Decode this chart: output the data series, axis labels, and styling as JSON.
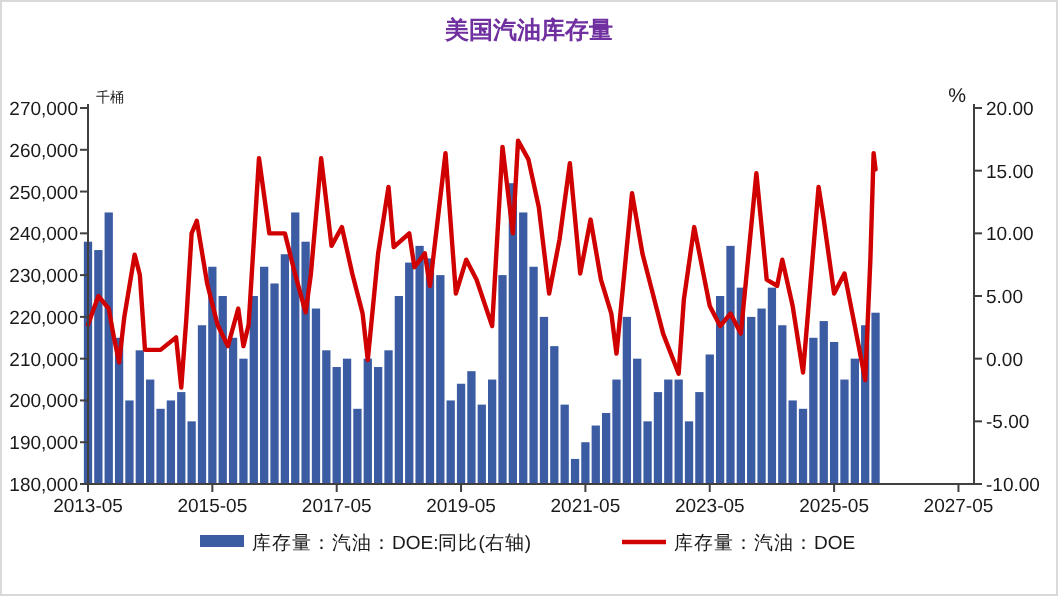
{
  "chart_data": {
    "type": "bar",
    "title": "美国汽油库存量",
    "ylabel": "千桶",
    "y2label": "%",
    "xlim": [
      "2013-05",
      "2027-08"
    ],
    "xticks": [
      "2013-05",
      "2015-05",
      "2017-05",
      "2019-05",
      "2021-05",
      "2023-05",
      "2025-05",
      "2027-05"
    ],
    "ylim": [
      180000,
      270000
    ],
    "yticks": [
      {
        "value": 180000,
        "label": "180,000"
      },
      {
        "value": 190000,
        "label": "190,000"
      },
      {
        "value": 200000,
        "label": "200,000"
      },
      {
        "value": 210000,
        "label": "210,000"
      },
      {
        "value": 220000,
        "label": "220,000"
      },
      {
        "value": 230000,
        "label": "230,000"
      },
      {
        "value": 240000,
        "label": "240,000"
      },
      {
        "value": 250000,
        "label": "250,000"
      },
      {
        "value": 260000,
        "label": "260,000"
      },
      {
        "value": 270000,
        "label": "270,000"
      }
    ],
    "y2lim": [
      -10,
      20
    ],
    "y2ticks": [
      {
        "value": -10,
        "label": "-10.00"
      },
      {
        "value": -5,
        "label": "-5.00"
      },
      {
        "value": 0,
        "label": "0.00"
      },
      {
        "value": 5,
        "label": "5.00"
      },
      {
        "value": 10,
        "label": "10.00"
      },
      {
        "value": 15,
        "label": "15.00"
      },
      {
        "value": 20,
        "label": "20.00"
      }
    ],
    "legend": "bottom",
    "series": [
      {
        "name": "库存量：汽油：DOE:同比(右轴)",
        "color": "#3b5ca3",
        "x": [
          "2013-05",
          "2013-07",
          "2013-09",
          "2013-11",
          "2014-01",
          "2014-03",
          "2014-05",
          "2014-07",
          "2014-09",
          "2014-11",
          "2015-01",
          "2015-03",
          "2015-05",
          "2015-07",
          "2015-09",
          "2015-11",
          "2016-01",
          "2016-03",
          "2016-05",
          "2016-07",
          "2016-09",
          "2016-11",
          "2017-01",
          "2017-03",
          "2017-05",
          "2017-07",
          "2017-09",
          "2017-11",
          "2018-01",
          "2018-03",
          "2018-05",
          "2018-07",
          "2018-09",
          "2018-11",
          "2019-01",
          "2019-03",
          "2019-05",
          "2019-07",
          "2019-09",
          "2019-11",
          "2020-01",
          "2020-03",
          "2020-05",
          "2020-07",
          "2020-09",
          "2020-11",
          "2021-01",
          "2021-03",
          "2021-05",
          "2021-07",
          "2021-09",
          "2021-11",
          "2022-01",
          "2022-03",
          "2022-05",
          "2022-07",
          "2022-09",
          "2022-11",
          "2023-01",
          "2023-03",
          "2023-05",
          "2023-07",
          "2023-09",
          "2023-11",
          "2024-01",
          "2024-03",
          "2024-05",
          "2024-07",
          "2024-09",
          "2024-11",
          "2025-01",
          "2025-03",
          "2025-05",
          "2025-07",
          "2025-09",
          "2025-11",
          "2026-01"
        ],
        "values": [
          238000,
          236000,
          245000,
          215000,
          200000,
          212000,
          205000,
          198000,
          200000,
          202000,
          195000,
          218000,
          232000,
          225000,
          215000,
          210000,
          225000,
          232000,
          228000,
          235000,
          245000,
          238000,
          222000,
          212000,
          208000,
          210000,
          198000,
          210000,
          208000,
          212000,
          225000,
          233000,
          237000,
          234000,
          230000,
          200000,
          204000,
          207000,
          199000,
          205000,
          230000,
          252000,
          245000,
          232000,
          220000,
          213000,
          199000,
          186000,
          190000,
          194000,
          197000,
          205000,
          220000,
          210000,
          195000,
          202000,
          205000,
          205000,
          195000,
          202000,
          211000,
          225000,
          237000,
          227000,
          220000,
          222000,
          227000,
          218000,
          200000,
          198000,
          215000,
          219000,
          214000,
          205000,
          210000,
          218000,
          221000
        ]
      },
      {
        "name": "库存量：汽油：DOE",
        "type": "line",
        "axis": "y2",
        "color": "#d00000",
        "x": [
          "2013-05",
          "2013-07",
          "2013-09",
          "2013-10",
          "2013-11",
          "2013-12",
          "2014-02",
          "2014-03",
          "2014-04",
          "2014-07",
          "2014-10",
          "2014-11",
          "2014-12",
          "2015-01",
          "2015-02",
          "2015-04",
          "2015-06",
          "2015-08",
          "2015-10",
          "2015-11",
          "2015-12",
          "2016-02",
          "2016-04",
          "2016-07",
          "2016-09",
          "2016-11",
          "2016-12",
          "2017-02",
          "2017-04",
          "2017-06",
          "2017-08",
          "2017-10",
          "2017-11",
          "2018-01",
          "2018-03",
          "2018-04",
          "2018-07",
          "2018-08",
          "2018-10",
          "2018-11",
          "2019-02",
          "2019-04",
          "2019-06",
          "2019-08",
          "2019-11",
          "2020-01",
          "2020-03",
          "2020-04",
          "2020-06",
          "2020-08",
          "2020-10",
          "2020-12",
          "2021-02",
          "2021-04",
          "2021-06",
          "2021-08",
          "2021-10",
          "2021-11",
          "2022-02",
          "2022-04",
          "2022-06",
          "2022-08",
          "2022-11",
          "2022-12",
          "2023-02",
          "2023-05",
          "2023-07",
          "2023-09",
          "2023-11",
          "2024-02",
          "2024-04",
          "2024-06",
          "2024-07",
          "2024-09",
          "2024-11",
          "2025-02",
          "2025-03",
          "2025-05",
          "2025-07",
          "2025-09",
          "2025-11",
          "2025-12",
          "2025-12-20",
          "2026-01"
        ],
        "values": [
          2.7,
          5,
          4,
          1.7,
          -0.3,
          3.3,
          8.3,
          6.7,
          0.7,
          0.7,
          1.7,
          -2.3,
          3.3,
          10,
          11,
          6,
          2.7,
          1,
          4,
          1,
          2.7,
          16,
          10,
          10,
          6.7,
          3.7,
          6.7,
          16,
          9,
          10.5,
          6.8,
          3.6,
          -0.1,
          8.4,
          13.7,
          8.9,
          10,
          7.3,
          8.4,
          5.8,
          16.4,
          5.2,
          7.9,
          6.3,
          2.6,
          16.9,
          10,
          17.4,
          15.9,
          12.1,
          5.2,
          9.5,
          15.6,
          6.8,
          11.1,
          6.3,
          3.6,
          0.4,
          13.2,
          8.4,
          5.2,
          2,
          -1.2,
          4.7,
          10.5,
          4.2,
          2.6,
          3.6,
          2,
          14.8,
          6.3,
          5.8,
          7.9,
          4.2,
          -1.1,
          13.7,
          11.1,
          5.2,
          6.8,
          2.6,
          -1.7,
          7.9,
          16.4,
          15.1
        ]
      }
    ]
  }
}
